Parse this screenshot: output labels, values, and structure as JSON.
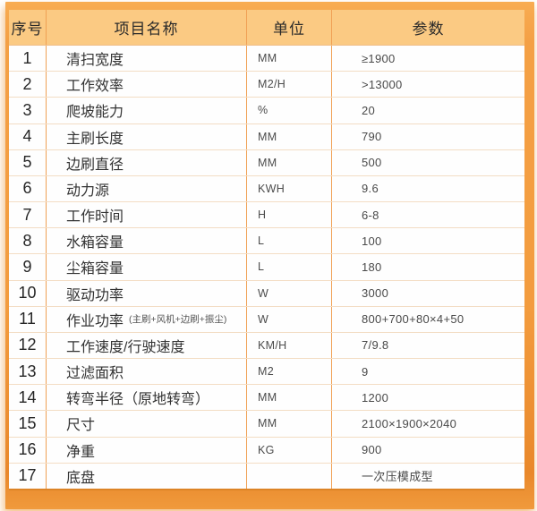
{
  "colors": {
    "frame_orange": "#F39C3E",
    "frame_dark_edge": "#DD8426",
    "header_bg": "#FBCA83",
    "vertical_line": "#F0A155",
    "horizontal_line": "#F3DDC4",
    "cell_bg": "#FEFEFE",
    "header_text": "#2A2A2A",
    "value_text": "#4A4A4A"
  },
  "table": {
    "headers": [
      "序号",
      "项目名称",
      "单位",
      "参数"
    ],
    "rows": [
      {
        "no": "1",
        "name": "清扫宽度",
        "unit": "MM",
        "value": "≥1900"
      },
      {
        "no": "2",
        "name": "工作效率",
        "unit": "M2/H",
        "value": ">13000"
      },
      {
        "no": "3",
        "name": "爬坡能力",
        "unit": "%",
        "value": "20"
      },
      {
        "no": "4",
        "name": "主刷长度",
        "unit": "MM",
        "value": "790"
      },
      {
        "no": "5",
        "name": "边刷直径",
        "unit": "MM",
        "value": "500"
      },
      {
        "no": "6",
        "name": "动力源",
        "unit": "KWH",
        "value": "9.6"
      },
      {
        "no": "7",
        "name": "工作时间",
        "unit": "H",
        "value": "6-8"
      },
      {
        "no": "8",
        "name": "水箱容量",
        "unit": "L",
        "value": "100"
      },
      {
        "no": "9",
        "name": "尘箱容量",
        "unit": "L",
        "value": "180"
      },
      {
        "no": "10",
        "name": "驱动功率",
        "unit": "W",
        "value": "3000"
      },
      {
        "no": "11",
        "name": "作业功率",
        "note": "(主刷+风机+边刷+振尘)",
        "unit": "W",
        "value": "800+700+80×4+50"
      },
      {
        "no": "12",
        "name": "工作速度/行驶速度",
        "unit": "KM/H",
        "value": "7/9.8"
      },
      {
        "no": "13",
        "name": "过滤面积",
        "unit": "M2",
        "value": "9"
      },
      {
        "no": "14",
        "name": "转弯半径（原地转弯）",
        "unit": "MM",
        "value": "1200"
      },
      {
        "no": "15",
        "name": "尺寸",
        "unit": "MM",
        "value": "2100×1900×2040"
      },
      {
        "no": "16",
        "name": "净重",
        "unit": "KG",
        "value": "900"
      },
      {
        "no": "17",
        "name": "底盘",
        "unit": "",
        "value": "一次压模成型"
      }
    ]
  }
}
